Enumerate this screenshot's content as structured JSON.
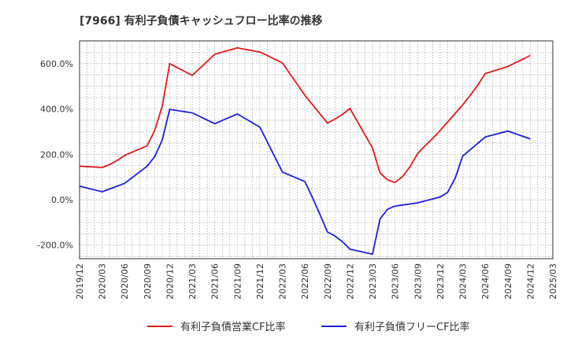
{
  "chart_data": {
    "type": "line",
    "title": "[7966]  有利子負債キャッシュフロー比率の推移",
    "xlabel": "",
    "ylabel": "",
    "ylim": [
      -260,
      700
    ],
    "yticks": [
      -200,
      0,
      200,
      400,
      600
    ],
    "ytick_labels": [
      "-200.0%",
      "0.0%",
      "200.0%",
      "400.0%",
      "600.0%"
    ],
    "xlim": [
      "2019-12",
      "2025-03"
    ],
    "xtick_labels": [
      "2019/12",
      "2020/03",
      "2020/06",
      "2020/09",
      "2020/12",
      "2021/03",
      "2021/06",
      "2021/09",
      "2021/12",
      "2022/03",
      "2022/06",
      "2022/09",
      "2022/12",
      "2023/03",
      "2023/06",
      "2023/09",
      "2023/12",
      "2024/03",
      "2024/06",
      "2024/09",
      "2024/12",
      "2025/03"
    ],
    "grid": true,
    "legend_position": "bottom",
    "series": [
      {
        "name": "有利子負債営業CF比率",
        "color": "#e31a1c",
        "points": [
          [
            "2019-12",
            148
          ],
          [
            "2020-03",
            142
          ],
          [
            "2020-04",
            155
          ],
          [
            "2020-05",
            173
          ],
          [
            "2020-06",
            195
          ],
          [
            "2020-09",
            238
          ],
          [
            "2020-10",
            305
          ],
          [
            "2020-11",
            410
          ],
          [
            "2020-12",
            600
          ],
          [
            "2021-03",
            548
          ],
          [
            "2021-06",
            641
          ],
          [
            "2021-09",
            669
          ],
          [
            "2021-12",
            651
          ],
          [
            "2022-03",
            603
          ],
          [
            "2022-06",
            460
          ],
          [
            "2022-09",
            338
          ],
          [
            "2022-10",
            355
          ],
          [
            "2022-11",
            376
          ],
          [
            "2022-12",
            402
          ],
          [
            "2023-03",
            228
          ],
          [
            "2023-04",
            118
          ],
          [
            "2023-05",
            88
          ],
          [
            "2023-06",
            76
          ],
          [
            "2023-07",
            102
          ],
          [
            "2023-08",
            146
          ],
          [
            "2023-09",
            203
          ],
          [
            "2023-10",
            238
          ],
          [
            "2023-11",
            270
          ],
          [
            "2023-12",
            305
          ],
          [
            "2024-03",
            418
          ],
          [
            "2024-04",
            460
          ],
          [
            "2024-05",
            505
          ],
          [
            "2024-06",
            556
          ],
          [
            "2024-09",
            587
          ],
          [
            "2024-12",
            636
          ]
        ]
      },
      {
        "name": "有利子負債フリーCF比率",
        "color": "#1f1fe0",
        "points": [
          [
            "2019-12",
            60
          ],
          [
            "2020-03",
            35
          ],
          [
            "2020-06",
            72
          ],
          [
            "2020-09",
            148
          ],
          [
            "2020-10",
            190
          ],
          [
            "2020-11",
            262
          ],
          [
            "2020-12",
            398
          ],
          [
            "2021-03",
            383
          ],
          [
            "2021-06",
            335
          ],
          [
            "2021-09",
            378
          ],
          [
            "2021-12",
            320
          ],
          [
            "2022-03",
            122
          ],
          [
            "2022-06",
            80
          ],
          [
            "2022-07",
            10
          ],
          [
            "2022-08",
            -65
          ],
          [
            "2022-09",
            -142
          ],
          [
            "2022-10",
            -160
          ],
          [
            "2022-11",
            -185
          ],
          [
            "2022-12",
            -218
          ],
          [
            "2023-03",
            -240
          ],
          [
            "2023-04",
            -85
          ],
          [
            "2023-05",
            -42
          ],
          [
            "2023-06",
            -28
          ],
          [
            "2023-09",
            -14
          ],
          [
            "2023-12",
            12
          ],
          [
            "2024-01",
            32
          ],
          [
            "2024-02",
            95
          ],
          [
            "2024-03",
            192
          ],
          [
            "2024-06",
            276
          ],
          [
            "2024-09",
            303
          ],
          [
            "2024-12",
            268
          ]
        ]
      }
    ]
  }
}
